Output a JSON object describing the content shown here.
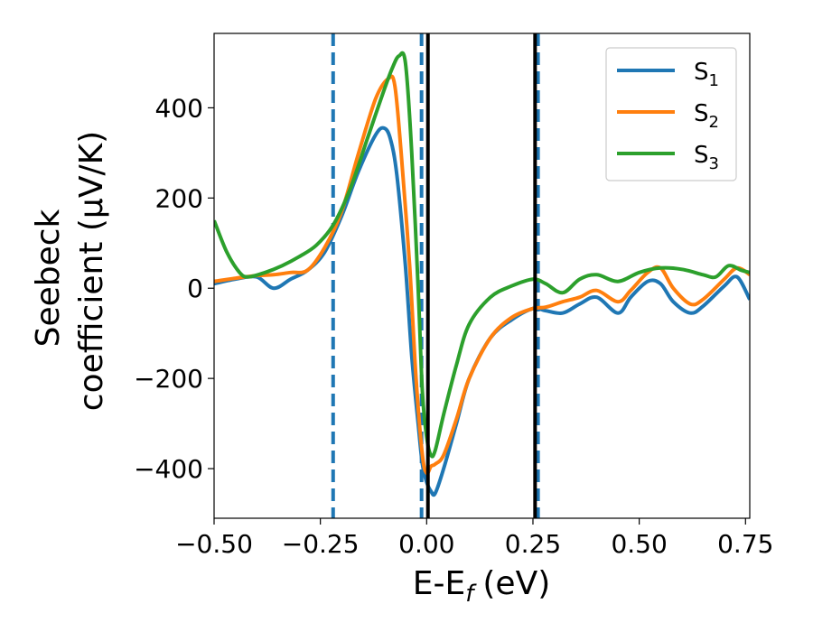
{
  "chart_data": {
    "type": "line",
    "title": "",
    "xlabel": "E-E",
    "xlabel_sub": "f",
    "xlabel_unit": "(eV)",
    "ylabel_line1": "Seebeck",
    "ylabel_line2": "coefficient  (μV/K)",
    "xlim": [
      -0.5,
      0.76
    ],
    "ylim": [
      -510,
      565
    ],
    "xticks": [
      -0.5,
      -0.25,
      0.0,
      0.25,
      0.5,
      0.75
    ],
    "xtick_labels": [
      "−0.50",
      "−0.25",
      "0.00",
      "0.25",
      "0.50",
      "0.75"
    ],
    "yticks": [
      -400,
      -200,
      0,
      200,
      400
    ],
    "ytick_labels": [
      "−400",
      "−200",
      "0",
      "200",
      "400"
    ],
    "grid": false,
    "legend_position": "top-right",
    "vertical_lines": [
      {
        "x": -0.22,
        "style": "dashed",
        "color": "#1f77b4"
      },
      {
        "x": -0.012,
        "style": "dashed",
        "color": "#1f77b4"
      },
      {
        "x": 0.262,
        "style": "dashed",
        "color": "#1f77b4"
      },
      {
        "x": 0.003,
        "style": "solid",
        "color": "#000000"
      },
      {
        "x": 0.255,
        "style": "solid",
        "color": "#000000"
      }
    ],
    "series": [
      {
        "name": "S",
        "name_sub": "1",
        "color": "#1f77b4",
        "x": [
          -0.5,
          -0.45,
          -0.4,
          -0.36,
          -0.32,
          -0.28,
          -0.24,
          -0.2,
          -0.16,
          -0.12,
          -0.1,
          -0.085,
          -0.07,
          -0.05,
          -0.035,
          -0.02,
          -0.01,
          0.0,
          0.01,
          0.02,
          0.04,
          0.07,
          0.1,
          0.15,
          0.2,
          0.25,
          0.28,
          0.32,
          0.36,
          0.4,
          0.45,
          0.48,
          0.52,
          0.55,
          0.58,
          0.62,
          0.65,
          0.7,
          0.73,
          0.76
        ],
        "y": [
          10,
          20,
          25,
          0,
          20,
          40,
          80,
          160,
          260,
          340,
          355,
          330,
          250,
          50,
          -150,
          -300,
          -390,
          -430,
          -450,
          -455,
          -400,
          -300,
          -200,
          -110,
          -70,
          -45,
          -50,
          -55,
          -35,
          -20,
          -55,
          -20,
          15,
          10,
          -30,
          -55,
          -40,
          5,
          25,
          -25
        ]
      },
      {
        "name": "S",
        "name_sub": "2",
        "color": "#ff7f0e",
        "x": [
          -0.5,
          -0.45,
          -0.4,
          -0.36,
          -0.32,
          -0.28,
          -0.24,
          -0.2,
          -0.16,
          -0.12,
          -0.09,
          -0.075,
          -0.06,
          -0.04,
          -0.025,
          -0.01,
          0.0,
          0.01,
          0.02,
          0.04,
          0.07,
          0.1,
          0.15,
          0.2,
          0.25,
          0.28,
          0.32,
          0.36,
          0.4,
          0.45,
          0.48,
          0.52,
          0.55,
          0.58,
          0.62,
          0.65,
          0.7,
          0.73,
          0.76
        ],
        "y": [
          15,
          22,
          28,
          30,
          35,
          40,
          90,
          170,
          300,
          420,
          465,
          450,
          300,
          50,
          -200,
          -370,
          -410,
          -395,
          -390,
          -370,
          -290,
          -200,
          -110,
          -65,
          -45,
          -42,
          -30,
          -20,
          -5,
          -30,
          -5,
          35,
          45,
          0,
          -35,
          -25,
          20,
          45,
          30
        ]
      },
      {
        "name": "S",
        "name_sub": "3",
        "color": "#2ca02c",
        "x": [
          -0.5,
          -0.47,
          -0.44,
          -0.42,
          -0.38,
          -0.34,
          -0.3,
          -0.26,
          -0.22,
          -0.18,
          -0.14,
          -0.1,
          -0.08,
          -0.065,
          -0.05,
          -0.035,
          -0.02,
          -0.01,
          0.0,
          0.01,
          0.02,
          0.04,
          0.07,
          0.1,
          0.15,
          0.2,
          0.25,
          0.28,
          0.32,
          0.36,
          0.4,
          0.45,
          0.5,
          0.55,
          0.6,
          0.65,
          0.68,
          0.71,
          0.74,
          0.76
        ],
        "y": [
          150,
          80,
          35,
          25,
          35,
          50,
          70,
          95,
          140,
          220,
          330,
          440,
          490,
          515,
          500,
          300,
          0,
          -230,
          -330,
          -370,
          -360,
          -280,
          -170,
          -80,
          -20,
          5,
          20,
          10,
          -10,
          20,
          30,
          15,
          35,
          45,
          42,
          30,
          25,
          50,
          40,
          35
        ]
      }
    ]
  }
}
